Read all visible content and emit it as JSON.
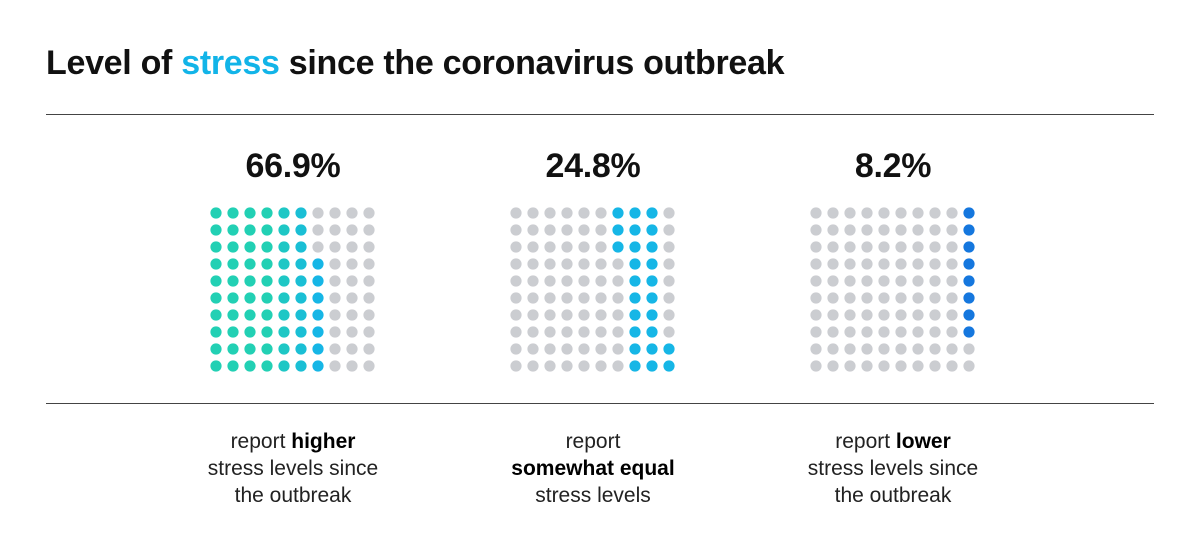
{
  "title": {
    "before": "Level of ",
    "highlight": "stress",
    "after": " since the coronavirus outbreak",
    "highlight_color": "#12b4e8"
  },
  "colors": {
    "inactive": "#cbcdd1",
    "teal": "#22d0b4",
    "cyan": "#16b6e6",
    "blue": "#1577de"
  },
  "chart_data": {
    "type": "waffle",
    "grid": {
      "rows": 10,
      "cols": 10
    },
    "groups": [
      {
        "label": "66.9%",
        "value": 66.9,
        "caption": {
          "line1_pre": "report ",
          "line1_bold": "higher",
          "line2": "stress levels since",
          "line3": "the outbreak"
        }
      },
      {
        "label": "24.8%",
        "value": 24.8,
        "caption": {
          "line1_pre": "report",
          "line1_bold": "",
          "line2_bold": "somewhat equal",
          "line3": "stress levels"
        }
      },
      {
        "label": "8.2%",
        "value": 8.2,
        "caption": {
          "line1_pre": "report ",
          "line1_bold": "lower",
          "line2": "stress levels since",
          "line3": "the outbreak"
        }
      }
    ]
  }
}
